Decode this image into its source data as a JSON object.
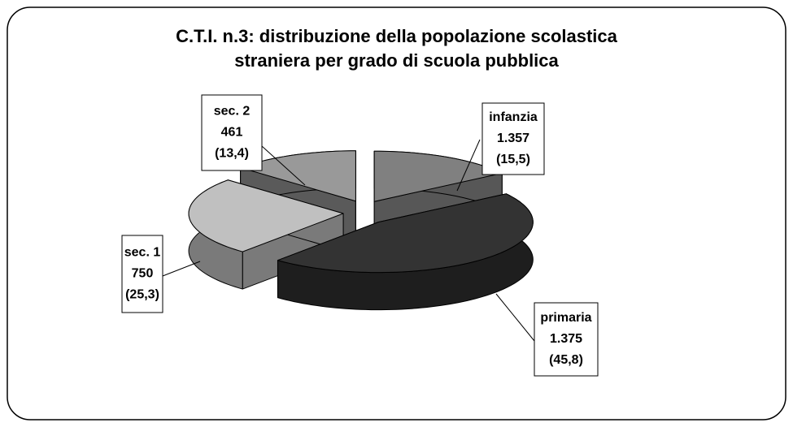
{
  "chart_data": {
    "type": "pie3d",
    "title": "C.T.I. n.3:  distribuzione della popolazione scolastica\nstraniera per  grado di scuola pubblica",
    "categories": [
      "infanzia",
      "primaria",
      "sec. 1",
      "sec. 2"
    ],
    "values": [
      15.5,
      45.8,
      25.3,
      13.4
    ],
    "value_labels": [
      "(15,5)",
      "(45,8)",
      "(25,3)",
      "(13,4)"
    ],
    "counts": [
      1357,
      1375,
      750,
      461
    ],
    "count_labels": [
      "1.357",
      "1.375",
      "750",
      "461"
    ],
    "colors": [
      "#808080",
      "#333333",
      "#c0c0c0",
      "#999999"
    ],
    "side_colors": [
      "#575757",
      "#1e1e1e",
      "#7a7a7a",
      "#5a5a5a"
    ]
  }
}
